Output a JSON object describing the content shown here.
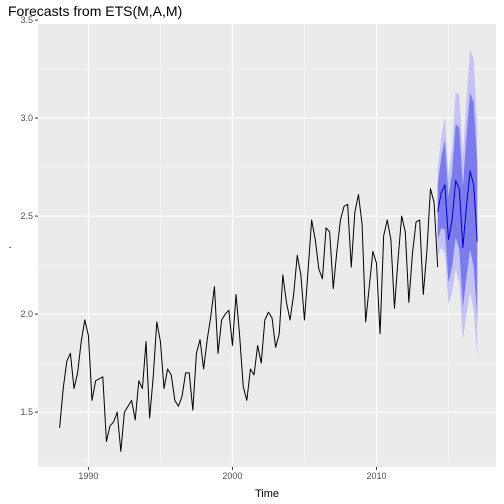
{
  "chart_data": {
    "type": "line",
    "title": "Forecasts from ETS(M,A,M)",
    "xlabel": "Time",
    "ylabel": ".",
    "xlim": [
      1986.5,
      2018.3
    ],
    "ylim": [
      1.22,
      3.48
    ],
    "x_ticks": [
      1990,
      2000,
      2010
    ],
    "x_tick_labels": [
      "1990",
      "2000",
      "2010"
    ],
    "y_ticks": [
      1.5,
      2.0,
      2.5,
      3.0,
      3.5
    ],
    "y_tick_labels": [
      "1.5",
      "2.0",
      "2.5",
      "3.0",
      "3.5"
    ],
    "grid": true,
    "frequency": 4,
    "history": {
      "start": 1988.0,
      "values": [
        1.42,
        1.62,
        1.76,
        1.8,
        1.62,
        1.7,
        1.86,
        1.97,
        1.89,
        1.56,
        1.66,
        1.67,
        1.68,
        1.35,
        1.43,
        1.45,
        1.5,
        1.3,
        1.5,
        1.53,
        1.56,
        1.46,
        1.66,
        1.62,
        1.86,
        1.47,
        1.68,
        1.96,
        1.86,
        1.62,
        1.72,
        1.69,
        1.56,
        1.53,
        1.58,
        1.7,
        1.7,
        1.51,
        1.8,
        1.87,
        1.72,
        1.87,
        1.99,
        2.14,
        1.8,
        1.97,
        2.0,
        2.02,
        1.84,
        2.1,
        1.89,
        1.63,
        1.56,
        1.72,
        1.69,
        1.84,
        1.75,
        1.97,
        2.01,
        1.98,
        1.83,
        1.9,
        2.2,
        2.06,
        1.97,
        2.1,
        2.3,
        2.2,
        1.97,
        2.22,
        2.48,
        2.38,
        2.23,
        2.18,
        2.44,
        2.42,
        2.13,
        2.32,
        2.48,
        2.55,
        2.56,
        2.24,
        2.52,
        2.61,
        2.46,
        1.96,
        2.14,
        2.32,
        2.26,
        1.9,
        2.4,
        2.48,
        2.38,
        2.03,
        2.28,
        2.5,
        2.42,
        2.06,
        2.31,
        2.47,
        2.48,
        2.1,
        2.32,
        2.64,
        2.57,
        2.24
      ]
    },
    "forecast": {
      "start": 2014.25,
      "mean": [
        2.52,
        2.62,
        2.66,
        2.38,
        2.48,
        2.68,
        2.64,
        2.34,
        2.55,
        2.73,
        2.66,
        2.37
      ],
      "lo80": [
        2.38,
        2.44,
        2.43,
        2.16,
        2.24,
        2.39,
        2.33,
        2.03,
        2.19,
        2.33,
        2.24,
        1.98
      ],
      "hi80": [
        2.66,
        2.8,
        2.89,
        2.6,
        2.72,
        2.97,
        2.95,
        2.65,
        2.91,
        3.13,
        3.08,
        2.76
      ],
      "lo95": [
        2.3,
        2.34,
        2.31,
        2.05,
        2.11,
        2.23,
        2.16,
        1.87,
        2.0,
        2.11,
        2.02,
        1.78
      ],
      "hi95": [
        2.74,
        2.9,
        3.01,
        2.71,
        2.85,
        3.13,
        3.12,
        2.81,
        3.1,
        3.35,
        3.3,
        2.96
      ]
    },
    "colors": {
      "panel": "#ebebeb",
      "grid_major": "#ffffff",
      "history_line": "#000000",
      "forecast_line": "#0000cc",
      "band95": "#c4c4f4",
      "band80": "#7b7bec"
    }
  }
}
